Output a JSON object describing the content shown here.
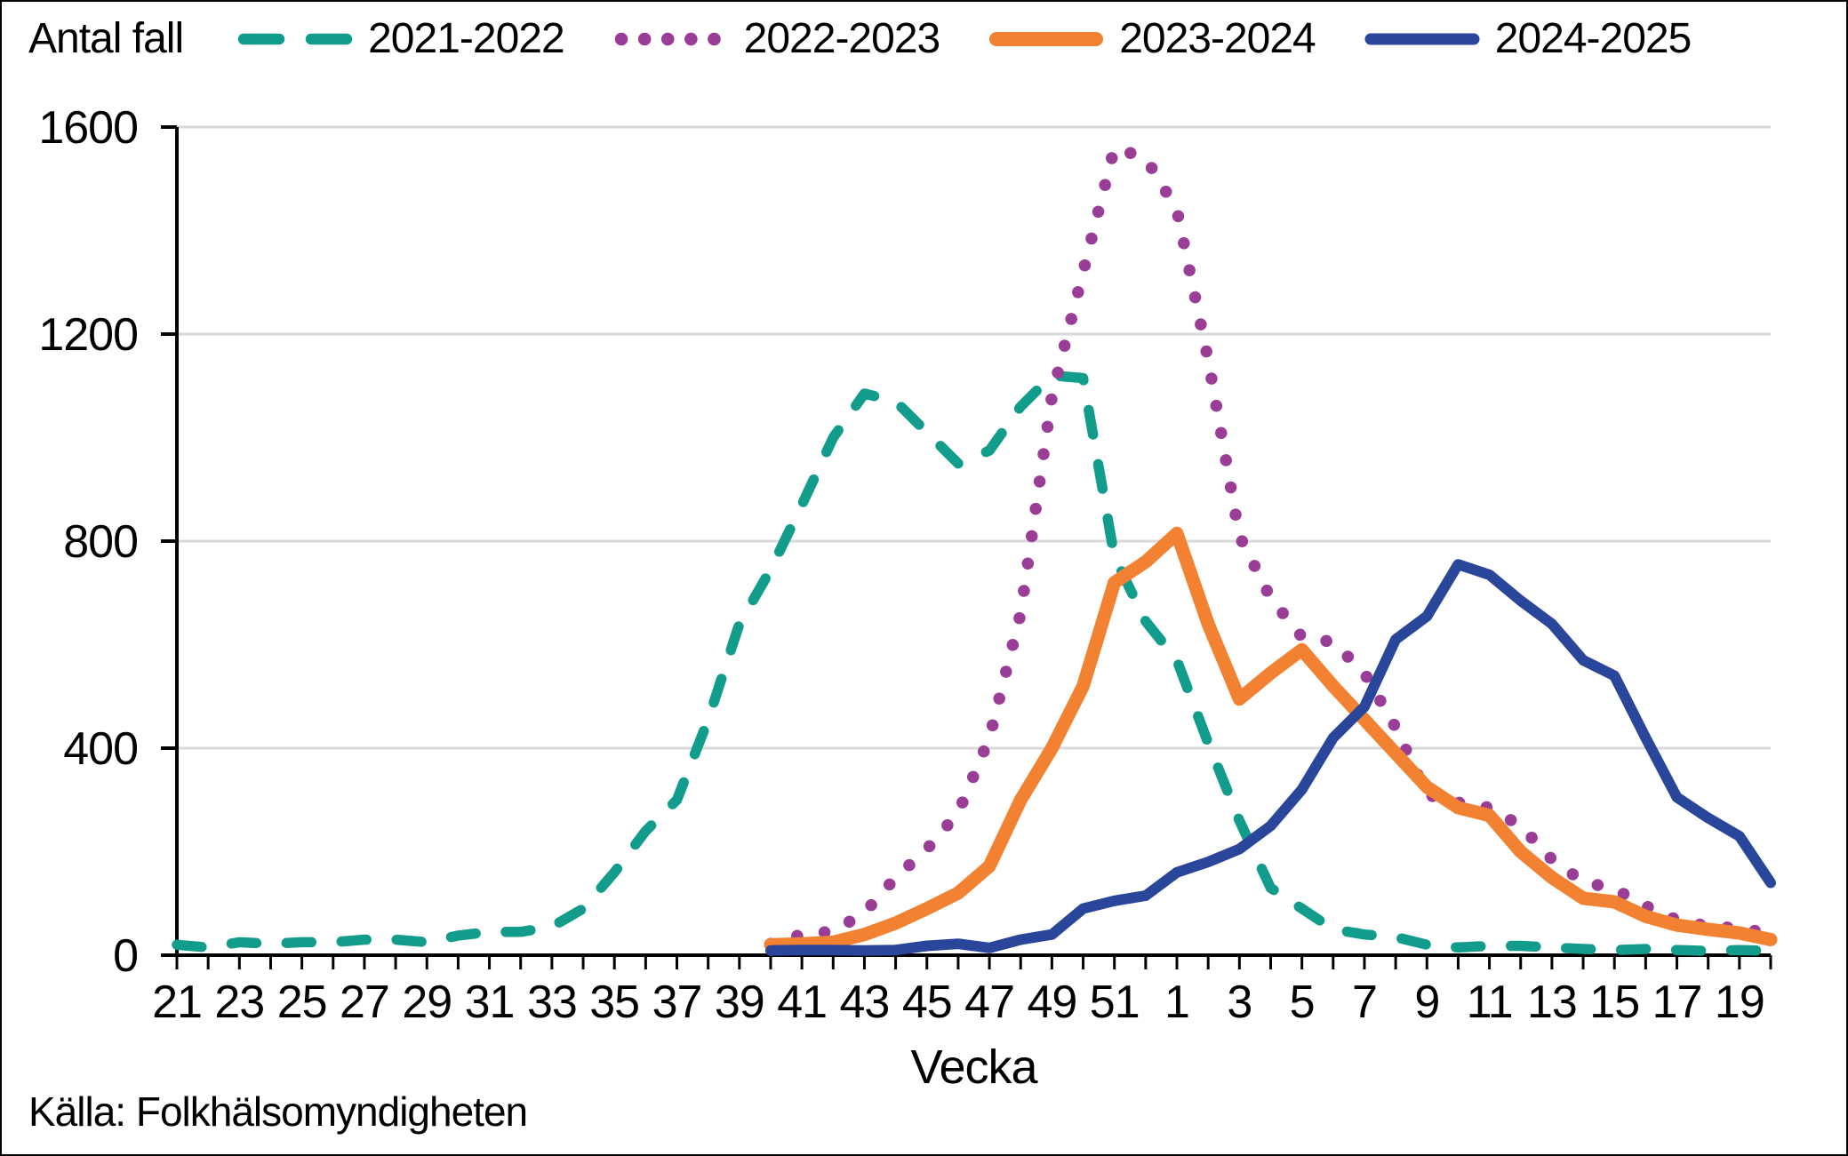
{
  "figure": {
    "background": "#FFFFFF",
    "border_color": "#000000"
  },
  "chart_data": {
    "type": "line",
    "title": "",
    "ylabel": "Antal fall",
    "xlabel": "Vecka",
    "source": "Källa: Folkhälsomyndigheten",
    "ylim": [
      0,
      1600
    ],
    "y_ticks": [
      0,
      400,
      800,
      1200,
      1600
    ],
    "grid": "horizontal",
    "grid_color": "#D9D9D9",
    "axis_color": "#000000",
    "legend_position": "top",
    "x_tick_labels_every": 2,
    "weeks": [
      "21",
      "22",
      "23",
      "24",
      "25",
      "26",
      "27",
      "28",
      "29",
      "30",
      "31",
      "32",
      "33",
      "34",
      "35",
      "36",
      "37",
      "38",
      "39",
      "40",
      "41",
      "42",
      "43",
      "44",
      "45",
      "46",
      "47",
      "48",
      "49",
      "50",
      "51",
      "52",
      "1",
      "2",
      "3",
      "4",
      "5",
      "6",
      "7",
      "8",
      "9",
      "10",
      "11",
      "12",
      "13",
      "14",
      "15",
      "16",
      "17",
      "18",
      "19",
      "20"
    ],
    "series": [
      {
        "name": "2021-2022",
        "color": "#129C8C",
        "style": "dashed",
        "values": [
          20,
          15,
          25,
          22,
          25,
          25,
          30,
          30,
          25,
          38,
          45,
          45,
          55,
          90,
          160,
          240,
          300,
          455,
          640,
          745,
          870,
          1000,
          1085,
          1070,
          1010,
          950,
          975,
          1060,
          1120,
          1115,
          770,
          645,
          570,
          410,
          260,
          130,
          90,
          50,
          40,
          35,
          20,
          15,
          18,
          18,
          15,
          12,
          10,
          12,
          10,
          8,
          10,
          8
        ]
      },
      {
        "name": "2022-2023",
        "color": "#9A3D97",
        "style": "dotted",
        "values": [
          null,
          null,
          null,
          null,
          null,
          null,
          null,
          null,
          null,
          null,
          null,
          null,
          null,
          null,
          null,
          null,
          null,
          null,
          null,
          22,
          40,
          46,
          82,
          150,
          205,
          275,
          420,
          660,
          1080,
          1320,
          1560,
          1540,
          1440,
          1150,
          810,
          690,
          615,
          605,
          545,
          440,
          310,
          295,
          285,
          250,
          185,
          142,
          128,
          95,
          68,
          56,
          52,
          42
        ]
      },
      {
        "name": "2023-2024",
        "color": "#F28131",
        "style": "solid-thick",
        "values": [
          null,
          null,
          null,
          null,
          null,
          null,
          null,
          null,
          null,
          null,
          null,
          null,
          null,
          null,
          null,
          null,
          null,
          null,
          null,
          20,
          22,
          25,
          40,
          62,
          90,
          120,
          172,
          300,
          400,
          520,
          720,
          760,
          815,
          640,
          495,
          545,
          590,
          520,
          455,
          390,
          325,
          285,
          270,
          200,
          150,
          110,
          103,
          75,
          58,
          50,
          43,
          30
        ]
      },
      {
        "name": "2024-2025",
        "color": "#2A469B",
        "style": "solid",
        "values": [
          null,
          null,
          null,
          null,
          null,
          null,
          null,
          null,
          null,
          null,
          null,
          null,
          null,
          null,
          null,
          null,
          null,
          null,
          null,
          9,
          10,
          10,
          9,
          10,
          18,
          22,
          14,
          30,
          40,
          90,
          105,
          115,
          160,
          180,
          205,
          250,
          320,
          420,
          480,
          610,
          655,
          755,
          735,
          685,
          640,
          570,
          540,
          420,
          305,
          265,
          230,
          140
        ]
      }
    ]
  }
}
